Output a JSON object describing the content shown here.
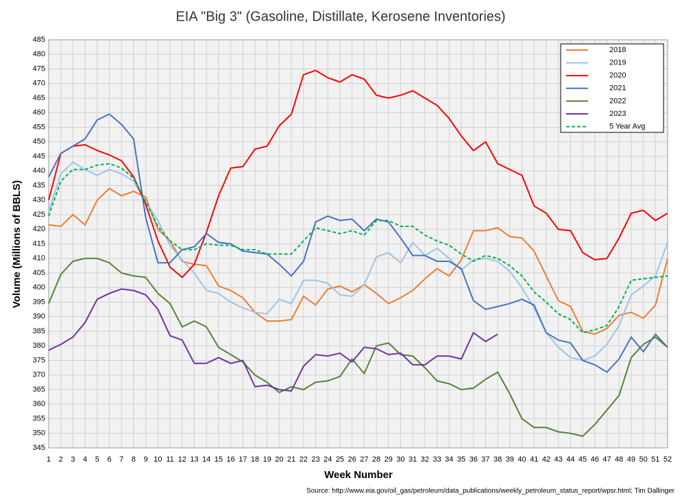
{
  "chart_data": {
    "type": "line",
    "title": "EIA \"Big 3\" (Gasoline, Distillate, Kerosene Inventories)",
    "x_label": "Week Number",
    "y_label": "Volume (Millions of BBLS)",
    "source": "Source: http://www.eia.gov/oil_gas/petroleum/data_publications/weekly_petroleum_status_report/wpsr.html; Tim Dallinger",
    "x": [
      1,
      2,
      3,
      4,
      5,
      6,
      7,
      8,
      9,
      10,
      11,
      12,
      13,
      14,
      15,
      16,
      17,
      18,
      19,
      20,
      21,
      22,
      23,
      24,
      25,
      26,
      27,
      28,
      29,
      30,
      31,
      32,
      33,
      34,
      35,
      36,
      37,
      38,
      39,
      40,
      41,
      42,
      43,
      44,
      45,
      46,
      47,
      48,
      49,
      50,
      51,
      52
    ],
    "xlim": [
      1,
      52
    ],
    "xticks": [
      1,
      2,
      3,
      4,
      5,
      6,
      7,
      8,
      9,
      10,
      11,
      12,
      13,
      14,
      15,
      16,
      17,
      18,
      19,
      20,
      21,
      22,
      23,
      24,
      25,
      26,
      27,
      28,
      29,
      30,
      31,
      32,
      33,
      34,
      35,
      36,
      37,
      38,
      39,
      40,
      41,
      42,
      43,
      44,
      45,
      46,
      47,
      48,
      49,
      50,
      51,
      52
    ],
    "ylim": [
      345,
      485
    ],
    "yticks": [
      345,
      350,
      355,
      360,
      365,
      370,
      375,
      380,
      385,
      390,
      395,
      400,
      405,
      410,
      415,
      420,
      425,
      430,
      435,
      440,
      445,
      450,
      455,
      460,
      465,
      470,
      475,
      480,
      485
    ],
    "grid": true,
    "legend": "top-right",
    "series": [
      {
        "name": "2018",
        "color": "#ed7d31",
        "dashed": false,
        "values": [
          421.5,
          421,
          425,
          421.5,
          430,
          434,
          431.5,
          433,
          431,
          420,
          416,
          409,
          408,
          407.5,
          400.5,
          399,
          396.5,
          391.5,
          388.5,
          388.5,
          389,
          397,
          394,
          399.5,
          400.5,
          398.5,
          401,
          398,
          394.5,
          396.5,
          399,
          403,
          406.5,
          404,
          409.5,
          419.5,
          419.5,
          420.5,
          417.5,
          417,
          412.5,
          404,
          395.5,
          393.5,
          385,
          384,
          386,
          390.5,
          391.5,
          389.5,
          394,
          410
        ]
      },
      {
        "name": "2019",
        "color": "#9dc3e6",
        "dashed": false,
        "values": [
          426,
          439,
          443,
          440.5,
          438.5,
          440.5,
          439,
          436.5,
          429.5,
          423,
          414.5,
          409.5,
          405,
          399,
          398,
          395,
          393,
          391.5,
          391,
          396,
          394.5,
          402.5,
          402.5,
          401.5,
          397.5,
          397,
          401,
          410.5,
          412,
          408.5,
          415.5,
          411,
          413.5,
          410,
          406,
          409.5,
          410,
          409,
          405.5,
          400,
          393,
          384.5,
          379.5,
          376,
          375,
          376.5,
          380.5,
          387,
          397.5,
          400.5,
          404,
          415.5
        ]
      },
      {
        "name": "2020",
        "color": "#ff0000",
        "dashed": false,
        "values": [
          430,
          446,
          448.5,
          449,
          447,
          445.5,
          443.5,
          438,
          428.5,
          416,
          407,
          403.5,
          408,
          419,
          431.5,
          441,
          441.5,
          447.5,
          448.5,
          455.5,
          459.5,
          473,
          474.5,
          472,
          470.5,
          473,
          471.5,
          466,
          465,
          466,
          467.5,
          465,
          462.5,
          458,
          452,
          447,
          450,
          442.5,
          440.5,
          438.5,
          428,
          425.5,
          420,
          419.5,
          412,
          409.5,
          410,
          417,
          425.5,
          426.5,
          423,
          425.5
        ]
      },
      {
        "name": "2021",
        "color": "#4472c4",
        "dashed": false,
        "values": [
          438,
          446,
          448.5,
          451,
          457.5,
          459.5,
          456,
          451,
          424,
          408.5,
          408.5,
          413,
          414,
          418.5,
          415.5,
          415,
          412.5,
          412,
          411.5,
          408,
          404,
          409,
          422.5,
          424.5,
          423,
          423.5,
          419.5,
          423.5,
          422.5,
          417,
          411,
          411,
          409,
          409,
          406.5,
          395.5,
          392.5,
          393.5,
          394.5,
          396,
          394,
          384.5,
          382,
          381,
          375,
          373.5,
          371,
          375.5,
          383,
          378,
          384,
          379.5
        ]
      },
      {
        "name": "2022",
        "color": "#548235",
        "dashed": false,
        "values": [
          394.5,
          404.5,
          409,
          410,
          410,
          408.5,
          405,
          404,
          403.5,
          398,
          394.5,
          386.5,
          388.5,
          386.5,
          379.5,
          377,
          374.5,
          370,
          367.5,
          364,
          366,
          365,
          367.5,
          368,
          369.5,
          375.5,
          370.5,
          380,
          381,
          377,
          376.5,
          372.5,
          368,
          367,
          365,
          365.5,
          368.5,
          371,
          363.5,
          355,
          352,
          352,
          350.5,
          350,
          349,
          353,
          358,
          363,
          376,
          380.5,
          383,
          379.5
        ]
      },
      {
        "name": "2023",
        "color": "#7030a0",
        "dashed": false,
        "values": [
          378.5,
          380.5,
          383,
          388,
          396,
          398,
          399.5,
          399,
          397.5,
          392.5,
          383.5,
          382,
          374,
          374,
          376,
          374,
          375,
          366,
          366.5,
          365,
          364.5,
          373,
          377,
          376.5,
          377.5,
          374.5,
          379.5,
          379,
          377,
          377.5,
          373.5,
          373.5,
          376.5,
          376.5,
          375.5,
          384.5,
          381.5,
          384,
          null,
          null,
          null,
          null,
          null,
          null,
          null,
          null,
          null,
          null,
          null,
          null,
          null,
          null
        ]
      },
      {
        "name": "5 Year Avg",
        "color": "#00b050",
        "dashed": true,
        "values": [
          424.5,
          436.5,
          440.5,
          440.5,
          442,
          442.5,
          441,
          437.5,
          429.5,
          421,
          416,
          413,
          413,
          415,
          414.5,
          414.5,
          413,
          413,
          411.5,
          411.5,
          411.5,
          416,
          420.5,
          419.5,
          418.5,
          419.5,
          418,
          423,
          423,
          421,
          421,
          418,
          416,
          414.5,
          411.5,
          409,
          411,
          410,
          407.5,
          404,
          398.5,
          395,
          391,
          389,
          384.5,
          385.5,
          387,
          393.5,
          402.5,
          403,
          403.5,
          404
        ]
      }
    ]
  }
}
